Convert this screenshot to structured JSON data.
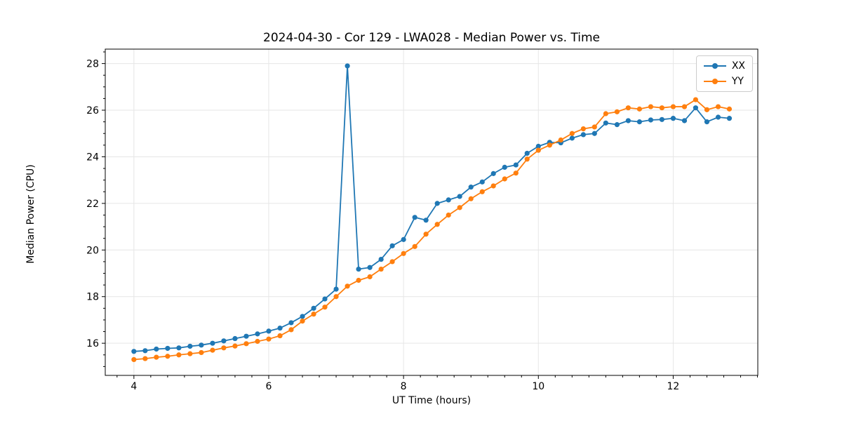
{
  "chart_data": {
    "type": "line",
    "title": "2024-04-30 - Cor 129 - LWA028 - Median Power vs. Time",
    "xlabel": "UT Time (hours)",
    "ylabel": "Median Power (CPU)",
    "xlim": [
      3.575,
      13.255
    ],
    "ylim": [
      14.62,
      28.62
    ],
    "xticks": [
      4,
      6,
      8,
      10,
      12
    ],
    "yticks": [
      16,
      18,
      20,
      22,
      24,
      26,
      28
    ],
    "minor_xtick_step": 0.25,
    "minor_ytick_step": 0.5,
    "grid": true,
    "legend_position": "upper right",
    "x": [
      4.0,
      4.167,
      4.333,
      4.5,
      4.667,
      4.833,
      5.0,
      5.167,
      5.333,
      5.5,
      5.667,
      5.833,
      6.0,
      6.167,
      6.333,
      6.5,
      6.667,
      6.833,
      7.0,
      7.167,
      7.333,
      7.5,
      7.667,
      7.833,
      8.0,
      8.167,
      8.333,
      8.5,
      8.667,
      8.833,
      9.0,
      9.167,
      9.333,
      9.5,
      9.667,
      9.833,
      10.0,
      10.167,
      10.333,
      10.5,
      10.667,
      10.833,
      11.0,
      11.167,
      11.333,
      11.5,
      11.667,
      11.833,
      12.0,
      12.167,
      12.333,
      12.5,
      12.667,
      12.833
    ],
    "series": [
      {
        "name": "XX",
        "color": "#1f77b4",
        "values": [
          15.65,
          15.68,
          15.75,
          15.78,
          15.8,
          15.87,
          15.92,
          16.0,
          16.1,
          16.2,
          16.3,
          16.4,
          16.52,
          16.65,
          16.88,
          17.15,
          17.5,
          17.9,
          18.32,
          27.9,
          19.18,
          19.25,
          19.6,
          20.18,
          20.45,
          21.4,
          21.28,
          22.0,
          22.15,
          22.3,
          22.7,
          22.92,
          23.28,
          23.55,
          23.65,
          24.15,
          24.45,
          24.62,
          24.6,
          24.8,
          24.95,
          25.0,
          25.45,
          25.38,
          25.55,
          25.5,
          25.58,
          25.6,
          25.65,
          25.55,
          26.1,
          25.5,
          25.7,
          25.65
        ]
      },
      {
        "name": "YY",
        "color": "#ff7f0e",
        "values": [
          15.3,
          15.34,
          15.4,
          15.44,
          15.5,
          15.55,
          15.6,
          15.7,
          15.8,
          15.88,
          15.98,
          16.08,
          16.18,
          16.32,
          16.58,
          16.95,
          17.25,
          17.55,
          18.0,
          18.45,
          18.7,
          18.85,
          19.18,
          19.5,
          19.85,
          20.15,
          20.68,
          21.1,
          21.5,
          21.82,
          22.2,
          22.5,
          22.75,
          23.05,
          23.3,
          23.9,
          24.28,
          24.5,
          24.72,
          25.0,
          25.2,
          25.28,
          25.85,
          25.93,
          26.1,
          26.05,
          26.15,
          26.1,
          26.15,
          26.15,
          26.45,
          26.02,
          26.15,
          26.05
        ]
      }
    ],
    "style": {
      "grid_color": "#e6e6e6",
      "spine_color": "#000000",
      "tick_color": "#000000",
      "marker_radius": 3.6,
      "line_width": 1.8
    }
  }
}
